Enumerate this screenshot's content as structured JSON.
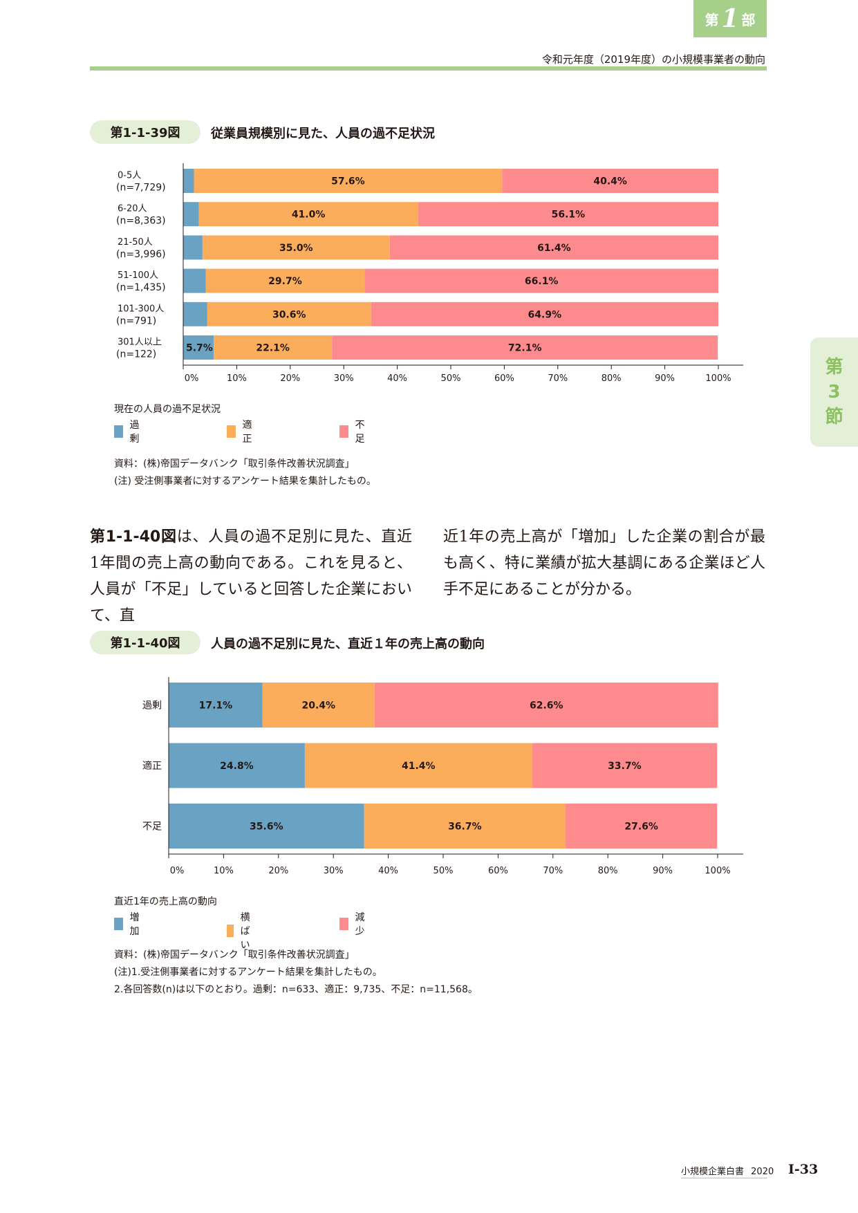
{
  "header": {
    "part_prefix": "第",
    "part_number": "1",
    "part_suffix": "部",
    "running_title": "令和元年度（2019年度）の小規模事業者の動向",
    "side_tab": [
      "第",
      "3",
      "節"
    ]
  },
  "colors": {
    "blue": "#6aa2c3",
    "orange": "#fbad5c",
    "pink": "#fd8a8c",
    "green": "#a6cf8a",
    "pale_green": "#e3f0d7"
  },
  "figure1": {
    "badge": "第1-1-39図",
    "title": "従業員規模別に見た、人員の過不足状況",
    "legend_title": "現在の人員の過不足状況",
    "notes": [
      "資料：(株)帝国データバンク「取引条件改善状況調査」",
      "(注) 受注側事業者に対するアンケート結果を集計したもの。"
    ]
  },
  "figure2": {
    "badge": "第1-1-40図",
    "title": "人員の過不足別に見た、直近１年の売上高の動向",
    "legend_title": "直近1年の売上高の動向",
    "notes": [
      "資料：(株)帝国データバンク「取引条件改善状況調査」",
      "(注)1.受注側事業者に対するアンケート結果を集計したもの。",
      "2.各回答数(n)は以下のとおり。過剰：n=633、適正：9,735、不足：n=11,568。"
    ]
  },
  "body": {
    "lead": "第1-1-40図",
    "col1_rest": "は、人員の過不足別に見た、直近1年間の売上高の動向である。これを見ると、人員が「不足」していると回答した企業において、直",
    "col2": "近1年の売上高が「増加」した企業の割合が最も高く、特に業績が拡大基調にある企業ほど人手不足にあることが分かる。"
  },
  "footer": {
    "book": "小規模企業白書",
    "year": "2020",
    "page": "I-33"
  },
  "chart_data": [
    {
      "type": "bar",
      "orientation": "horizontal",
      "stacked": true,
      "categories": [
        [
          "0-5人",
          "(n=7,729)"
        ],
        [
          "6-20人",
          "(n=8,363)"
        ],
        [
          "21-50人",
          "(n=3,996)"
        ],
        [
          "51-100人",
          "(n=1,435)"
        ],
        [
          "101-300人",
          "(n=791)"
        ],
        [
          "301人以上",
          "(n=122)"
        ]
      ],
      "series": [
        {
          "name": "過剰",
          "color": "#6aa2c3",
          "values": [
            2.0,
            2.9,
            3.6,
            4.2,
            4.5,
            5.7
          ],
          "labels": [
            "",
            "",
            "",
            "",
            "",
            "5.7%"
          ]
        },
        {
          "name": "適正",
          "color": "#fbad5c",
          "values": [
            57.6,
            41.0,
            35.0,
            29.7,
            30.6,
            22.1
          ],
          "labels": [
            "57.6%",
            "41.0%",
            "35.0%",
            "29.7%",
            "30.6%",
            "22.1%"
          ]
        },
        {
          "name": "不足",
          "color": "#fd8a8c",
          "values": [
            40.4,
            56.1,
            61.4,
            66.1,
            64.9,
            72.1
          ],
          "labels": [
            "40.4%",
            "56.1%",
            "61.4%",
            "66.1%",
            "64.9%",
            "72.1%"
          ]
        }
      ],
      "xlim": [
        0,
        100
      ],
      "xticks": [
        "0%",
        "10%",
        "20%",
        "30%",
        "40%",
        "50%",
        "60%",
        "70%",
        "80%",
        "90%",
        "100%"
      ],
      "legend_position": "bottom-left",
      "grid": false
    },
    {
      "type": "bar",
      "orientation": "horizontal",
      "stacked": true,
      "categories": [
        [
          "過剰"
        ],
        [
          "適正"
        ],
        [
          "不足"
        ]
      ],
      "series": [
        {
          "name": "増加",
          "color": "#6aa2c3",
          "values": [
            17.1,
            24.8,
            35.6
          ],
          "labels": [
            "17.1%",
            "24.8%",
            "35.6%"
          ]
        },
        {
          "name": "横ばい",
          "color": "#fbad5c",
          "values": [
            20.4,
            41.4,
            36.7
          ],
          "labels": [
            "20.4%",
            "41.4%",
            "36.7%"
          ]
        },
        {
          "name": "減少",
          "color": "#fd8a8c",
          "values": [
            62.6,
            33.7,
            27.6
          ],
          "labels": [
            "62.6%",
            "33.7%",
            "27.6%"
          ]
        }
      ],
      "xlim": [
        0,
        100
      ],
      "xticks": [
        "0%",
        "10%",
        "20%",
        "30%",
        "40%",
        "50%",
        "60%",
        "70%",
        "80%",
        "90%",
        "100%"
      ],
      "legend_position": "bottom-left",
      "grid": false
    }
  ]
}
